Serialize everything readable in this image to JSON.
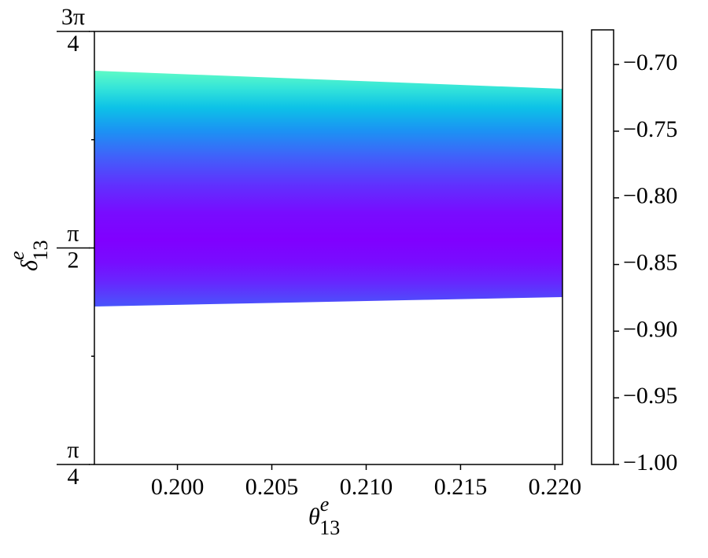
{
  "chart_data": {
    "type": "band",
    "xlabel": {
      "symbol": "θ",
      "sub": "13",
      "sup": "e"
    },
    "ylabel": {
      "symbol": "δ",
      "sub": "13",
      "sup": "e"
    },
    "x": [
      0.1956,
      0.2204
    ],
    "series": [
      {
        "name": "upper",
        "values": [
          2.2137,
          2.1481
        ]
      },
      {
        "name": "lower",
        "values": [
          1.3584,
          1.3926
        ]
      }
    ],
    "z_profile": {
      "delta": [
        1.36,
        1.45,
        1.52,
        1.6,
        1.7,
        1.8,
        1.9,
        2.0,
        2.08,
        2.15,
        2.21
      ],
      "values": [
        -0.965,
        -0.985,
        -0.995,
        -1.0,
        -0.995,
        -0.98,
        -0.96,
        -0.935,
        -0.91,
        -0.885,
        -0.86
      ]
    },
    "colormap": "rainbow",
    "xlim": [
      0.1956,
      0.2204
    ],
    "xticks": [
      {
        "value": 0.2,
        "label": "0.200"
      },
      {
        "value": 0.205,
        "label": "0.205"
      },
      {
        "value": 0.21,
        "label": "0.210"
      },
      {
        "value": 0.215,
        "label": "0.215"
      },
      {
        "value": 0.22,
        "label": "0.220"
      }
    ],
    "ylim": [
      0.7854,
      2.3562
    ],
    "yticks": [
      {
        "value": 0.7854,
        "label": {
          "numerator": "π",
          "denominator": "4"
        }
      },
      {
        "value": 1.5708,
        "label": {
          "numerator": "π",
          "denominator": "2"
        }
      },
      {
        "value": 2.3562,
        "label": {
          "numerator": "3π",
          "denominator": "4"
        }
      }
    ],
    "yminor_ticks": [
      1.1781,
      1.9635
    ],
    "clim": [
      -1.0,
      -0.674
    ],
    "cticks": [
      {
        "value": -1.0,
        "label": "−1.00"
      },
      {
        "value": -0.95,
        "label": "−0.95"
      },
      {
        "value": -0.9,
        "label": "−0.90"
      },
      {
        "value": -0.85,
        "label": "−0.85"
      },
      {
        "value": -0.8,
        "label": "−0.80"
      },
      {
        "value": -0.75,
        "label": "−0.75"
      },
      {
        "value": -0.7,
        "label": "−0.70"
      }
    ]
  }
}
